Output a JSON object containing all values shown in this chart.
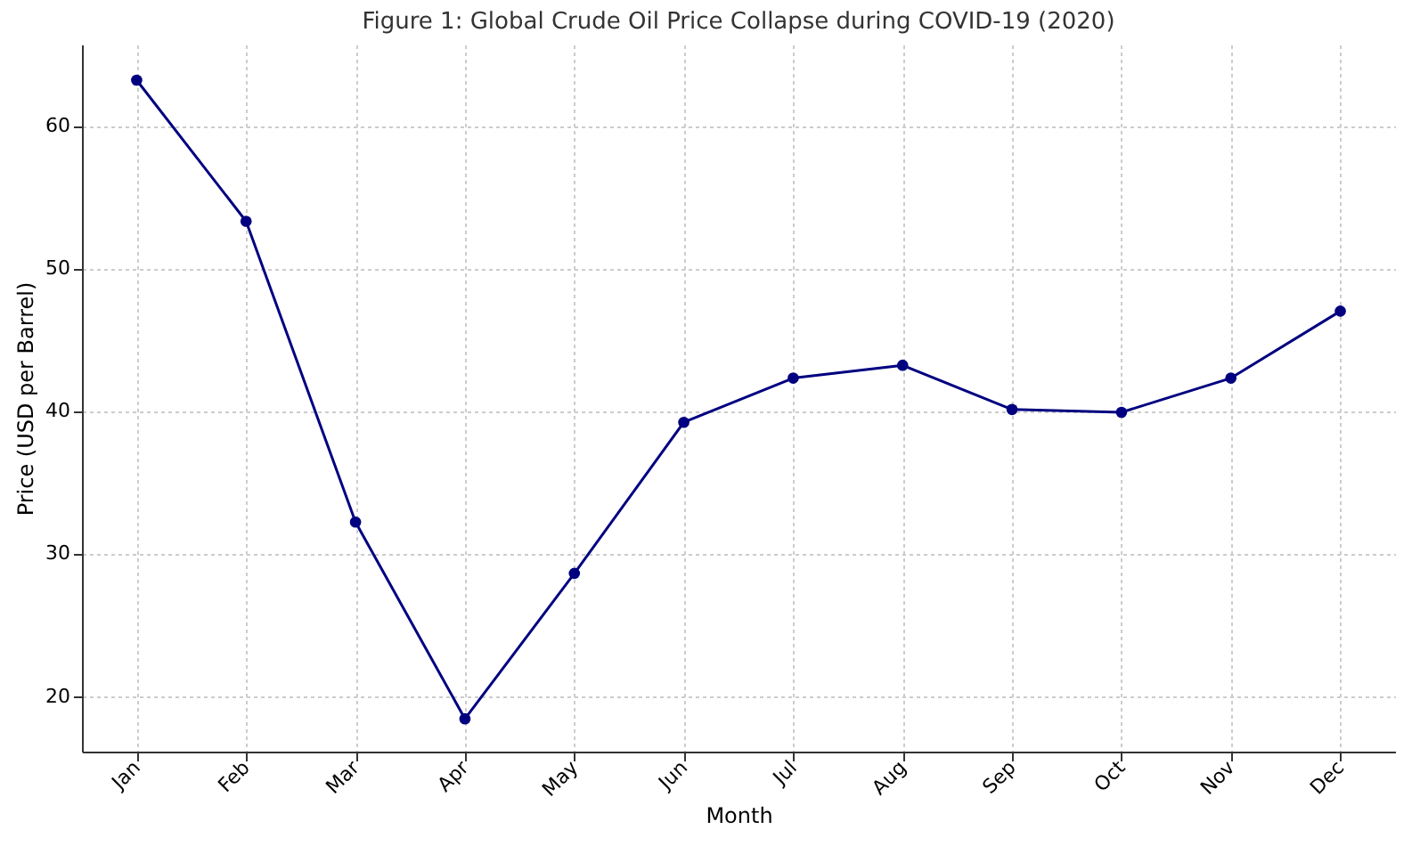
{
  "chart_data": {
    "type": "line",
    "title": "Figure 1: Global Crude Oil Price Collapse during COVID-19 (2020)",
    "xlabel": "Month",
    "ylabel": "Price (USD per Barrel)",
    "categories": [
      "Jan",
      "Feb",
      "Mar",
      "Apr",
      "May",
      "Jun",
      "Jul",
      "Aug",
      "Sep",
      "Oct",
      "Nov",
      "Dec"
    ],
    "series": [
      {
        "color": "#000080",
        "values": [
          63.2,
          53.3,
          32.2,
          18.4,
          28.6,
          39.2,
          42.3,
          43.2,
          40.1,
          39.9,
          42.3,
          47.0
        ]
      }
    ],
    "ylim": [
      16.1,
      65.7
    ],
    "yticks": [
      20,
      30,
      40,
      50,
      60
    ],
    "grid": true,
    "marker": "circle",
    "line_style": "solid"
  }
}
